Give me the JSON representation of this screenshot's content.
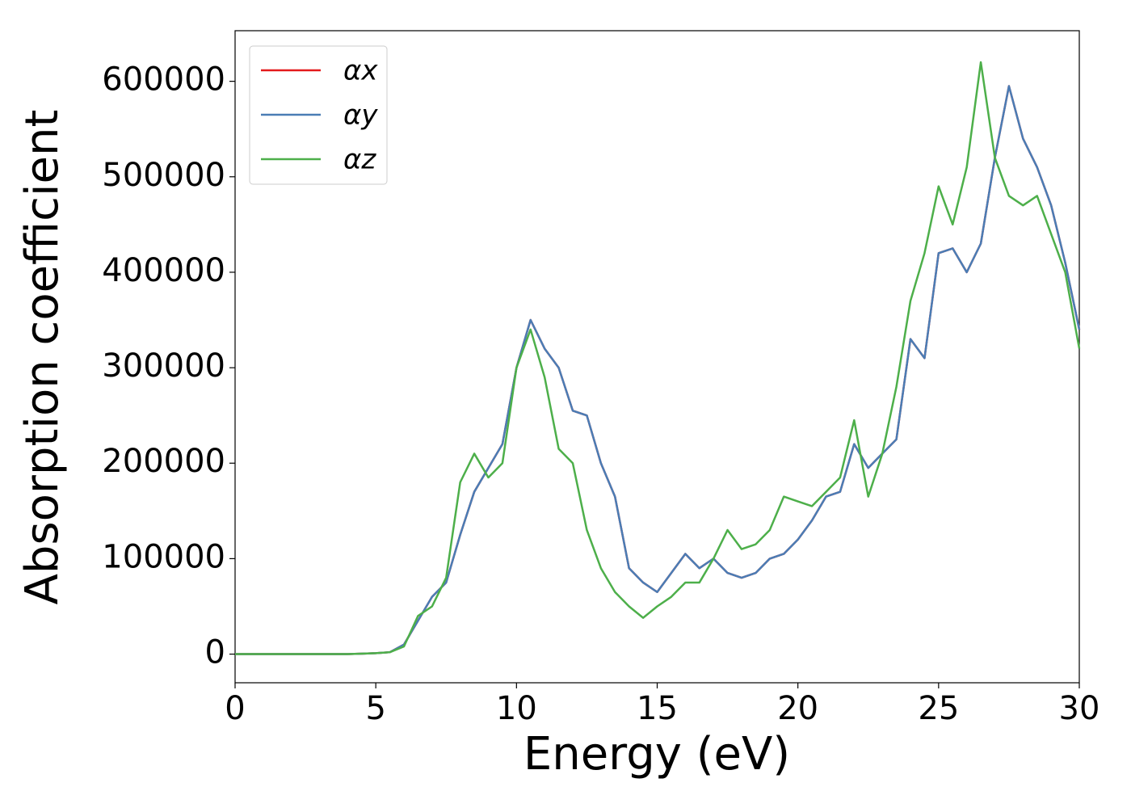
{
  "chart_data": {
    "type": "line",
    "xlabel": "Energy (eV)",
    "ylabel": "Absorption coefficient",
    "x": [
      0,
      0.5,
      1,
      1.5,
      2,
      2.5,
      3,
      3.5,
      4,
      4.5,
      5,
      5.5,
      6,
      6.5,
      7,
      7.5,
      8,
      8.5,
      9,
      9.5,
      10,
      10.5,
      11,
      11.5,
      12,
      12.5,
      13,
      13.5,
      14,
      14.5,
      15,
      15.5,
      16,
      16.5,
      17,
      17.5,
      18,
      18.5,
      19,
      19.5,
      20,
      20.5,
      21,
      21.5,
      22,
      22.5,
      23,
      23.5,
      24,
      24.5,
      25,
      25.5,
      26,
      26.5,
      27,
      27.5,
      28,
      28.5,
      29,
      29.5,
      30
    ],
    "series": [
      {
        "name": "αx",
        "color": "#e41a1c",
        "values": [
          0,
          0,
          0,
          0,
          0,
          0,
          0,
          0,
          0,
          500,
          1000,
          2000,
          10000,
          35000,
          60000,
          75000,
          125000,
          170000,
          195000,
          220000,
          300000,
          350000,
          320000,
          300000,
          255000,
          250000,
          200000,
          165000,
          90000,
          75000,
          65000,
          85000,
          105000,
          90000,
          100000,
          85000,
          80000,
          85000,
          100000,
          105000,
          120000,
          140000,
          165000,
          170000,
          220000,
          195000,
          210000,
          225000,
          330000,
          310000,
          420000,
          425000,
          400000,
          430000,
          520000,
          595000,
          540000,
          510000,
          470000,
          410000,
          340000
        ]
      },
      {
        "name": "αy",
        "color": "#4a7db5",
        "values": [
          0,
          0,
          0,
          0,
          0,
          0,
          0,
          0,
          0,
          500,
          1000,
          2000,
          10000,
          35000,
          60000,
          75000,
          125000,
          170000,
          195000,
          220000,
          300000,
          350000,
          320000,
          300000,
          255000,
          250000,
          200000,
          165000,
          90000,
          75000,
          65000,
          85000,
          105000,
          90000,
          100000,
          85000,
          80000,
          85000,
          100000,
          105000,
          120000,
          140000,
          165000,
          170000,
          220000,
          195000,
          210000,
          225000,
          330000,
          310000,
          420000,
          425000,
          400000,
          430000,
          520000,
          595000,
          540000,
          510000,
          470000,
          410000,
          340000
        ]
      },
      {
        "name": "αz",
        "color": "#4daf4a",
        "values": [
          0,
          0,
          0,
          0,
          0,
          0,
          0,
          0,
          0,
          500,
          1000,
          2000,
          8000,
          40000,
          50000,
          80000,
          180000,
          210000,
          185000,
          200000,
          300000,
          340000,
          290000,
          215000,
          200000,
          130000,
          90000,
          65000,
          50000,
          38000,
          50000,
          60000,
          75000,
          75000,
          100000,
          130000,
          110000,
          115000,
          130000,
          165000,
          160000,
          155000,
          170000,
          185000,
          245000,
          165000,
          210000,
          280000,
          370000,
          420000,
          490000,
          450000,
          510000,
          620000,
          520000,
          480000,
          470000,
          480000,
          440000,
          400000,
          320000
        ]
      }
    ],
    "xlim": [
      0,
      30
    ],
    "xticks": [
      0,
      5,
      10,
      15,
      20,
      25,
      30
    ],
    "ylim": [
      -30000,
      653000
    ],
    "yticks": [
      0,
      100000,
      200000,
      300000,
      400000,
      500000,
      600000
    ],
    "legend": "upper left"
  }
}
